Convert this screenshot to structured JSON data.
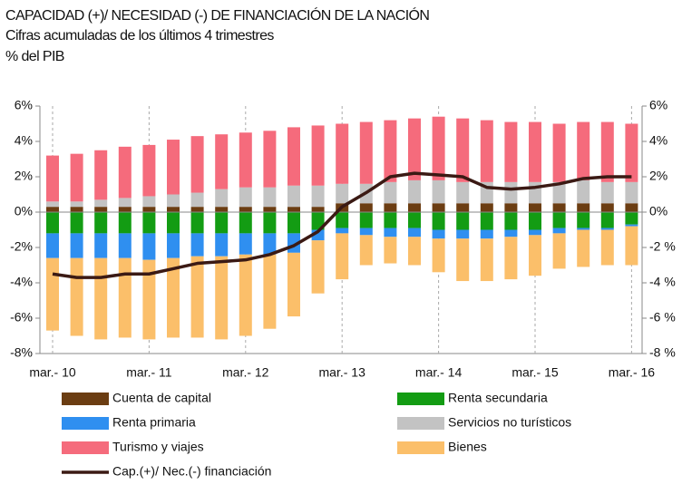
{
  "chart_data": {
    "type": "bar",
    "stacked": true,
    "title": "CAPACIDAD (+)/ NECESIDAD (-) DE FINANCIACIÓN DE LA NACIÓN",
    "subtitle": "Cifras acumuladas de los últimos 4 trimestres",
    "y_label": "% del PIB",
    "categories": [
      "mar.- 10",
      null,
      null,
      null,
      "mar.- 11",
      null,
      null,
      null,
      "mar.- 12",
      null,
      null,
      null,
      "mar.- 13",
      null,
      null,
      null,
      "mar.- 14",
      null,
      null,
      null,
      "mar.- 15",
      null,
      null,
      null,
      "mar.- 16"
    ],
    "series": [
      {
        "name": "Cuenta de capital",
        "color": "#6b3d12",
        "values": [
          0.3,
          0.3,
          0.3,
          0.3,
          0.3,
          0.3,
          0.3,
          0.3,
          0.3,
          0.3,
          0.3,
          0.3,
          0.5,
          0.5,
          0.5,
          0.5,
          0.5,
          0.5,
          0.5,
          0.5,
          0.5,
          0.5,
          0.5,
          0.5,
          0.5
        ]
      },
      {
        "name": "Renta secundaria",
        "color": "#139c13",
        "values": [
          -1.2,
          -1.2,
          -1.2,
          -1.2,
          -1.2,
          -1.2,
          -1.2,
          -1.2,
          -1.2,
          -1.2,
          -1.2,
          -1.0,
          -0.9,
          -0.9,
          -0.9,
          -0.9,
          -1.0,
          -1.0,
          -1.0,
          -1.0,
          -1.0,
          -0.9,
          -0.9,
          -0.9,
          -0.7
        ]
      },
      {
        "name": "Renta primaria",
        "color": "#2f8ff0",
        "values": [
          -1.4,
          -1.4,
          -1.4,
          -1.4,
          -1.5,
          -1.4,
          -1.3,
          -1.3,
          -1.2,
          -1.2,
          -1.1,
          -0.6,
          -0.3,
          -0.4,
          -0.5,
          -0.5,
          -0.5,
          -0.5,
          -0.5,
          -0.4,
          -0.3,
          -0.3,
          -0.1,
          -0.1,
          -0.1
        ]
      },
      {
        "name": "Servicios no turísticos",
        "color": "#c3c3c3",
        "values": [
          0.3,
          0.3,
          0.4,
          0.5,
          0.6,
          0.7,
          0.8,
          1.0,
          1.1,
          1.1,
          1.2,
          1.2,
          1.1,
          1.1,
          1.2,
          1.3,
          1.3,
          1.2,
          1.2,
          1.2,
          1.2,
          1.2,
          1.3,
          1.2,
          1.2
        ]
      },
      {
        "name": "Turismo y viajes",
        "color": "#f56b7c",
        "values": [
          2.6,
          2.7,
          2.8,
          2.9,
          2.9,
          3.1,
          3.2,
          3.1,
          3.1,
          3.2,
          3.3,
          3.4,
          3.4,
          3.5,
          3.5,
          3.5,
          3.6,
          3.6,
          3.5,
          3.4,
          3.4,
          3.3,
          3.3,
          3.4,
          3.3
        ]
      },
      {
        "name": "Bienes",
        "color": "#fbbf6a",
        "values": [
          -4.1,
          -4.4,
          -4.6,
          -4.5,
          -4.5,
          -4.5,
          -4.6,
          -4.7,
          -4.6,
          -4.2,
          -3.6,
          -3.0,
          -2.6,
          -1.7,
          -1.5,
          -1.6,
          -1.9,
          -2.4,
          -2.4,
          -2.4,
          -2.3,
          -2.0,
          -2.1,
          -2.0,
          -2.2
        ]
      },
      {
        "name": "Cap.(+)/ Nec.(-) financiación",
        "color": "#3b1a14",
        "type": "line",
        "values": [
          -3.5,
          -3.7,
          -3.7,
          -3.5,
          -3.5,
          -3.2,
          -2.9,
          -2.8,
          -2.7,
          -2.4,
          -1.9,
          -1.1,
          0.3,
          1.1,
          2.0,
          2.2,
          2.1,
          2.0,
          1.4,
          1.3,
          1.4,
          1.6,
          1.9,
          2.0,
          2.0
        ]
      }
    ],
    "ylim": [
      -8,
      6
    ],
    "yticks": [
      {
        "value": -8,
        "label": "-8%"
      },
      {
        "value": -6,
        "label": "-6%"
      },
      {
        "value": -4,
        "label": "-4%"
      },
      {
        "value": -2,
        "label": "-2%"
      },
      {
        "value": 0,
        "label": "0%"
      },
      {
        "value": 2,
        "label": "2%"
      },
      {
        "value": 4,
        "label": "4%"
      },
      {
        "value": 6,
        "label": "6%"
      }
    ],
    "y2lim": [
      -8,
      6
    ],
    "y2ticks": [
      {
        "value": -8,
        "label": "-8 %"
      },
      {
        "value": -6,
        "label": "-6 %"
      },
      {
        "value": -4,
        "label": "-4 %"
      },
      {
        "value": -2,
        "label": "-2 %"
      },
      {
        "value": 0,
        "label": "0%"
      },
      {
        "value": 2,
        "label": "2%"
      },
      {
        "value": 4,
        "label": "4%"
      },
      {
        "value": 6,
        "label": "6%"
      }
    ],
    "legend": "bottom"
  }
}
